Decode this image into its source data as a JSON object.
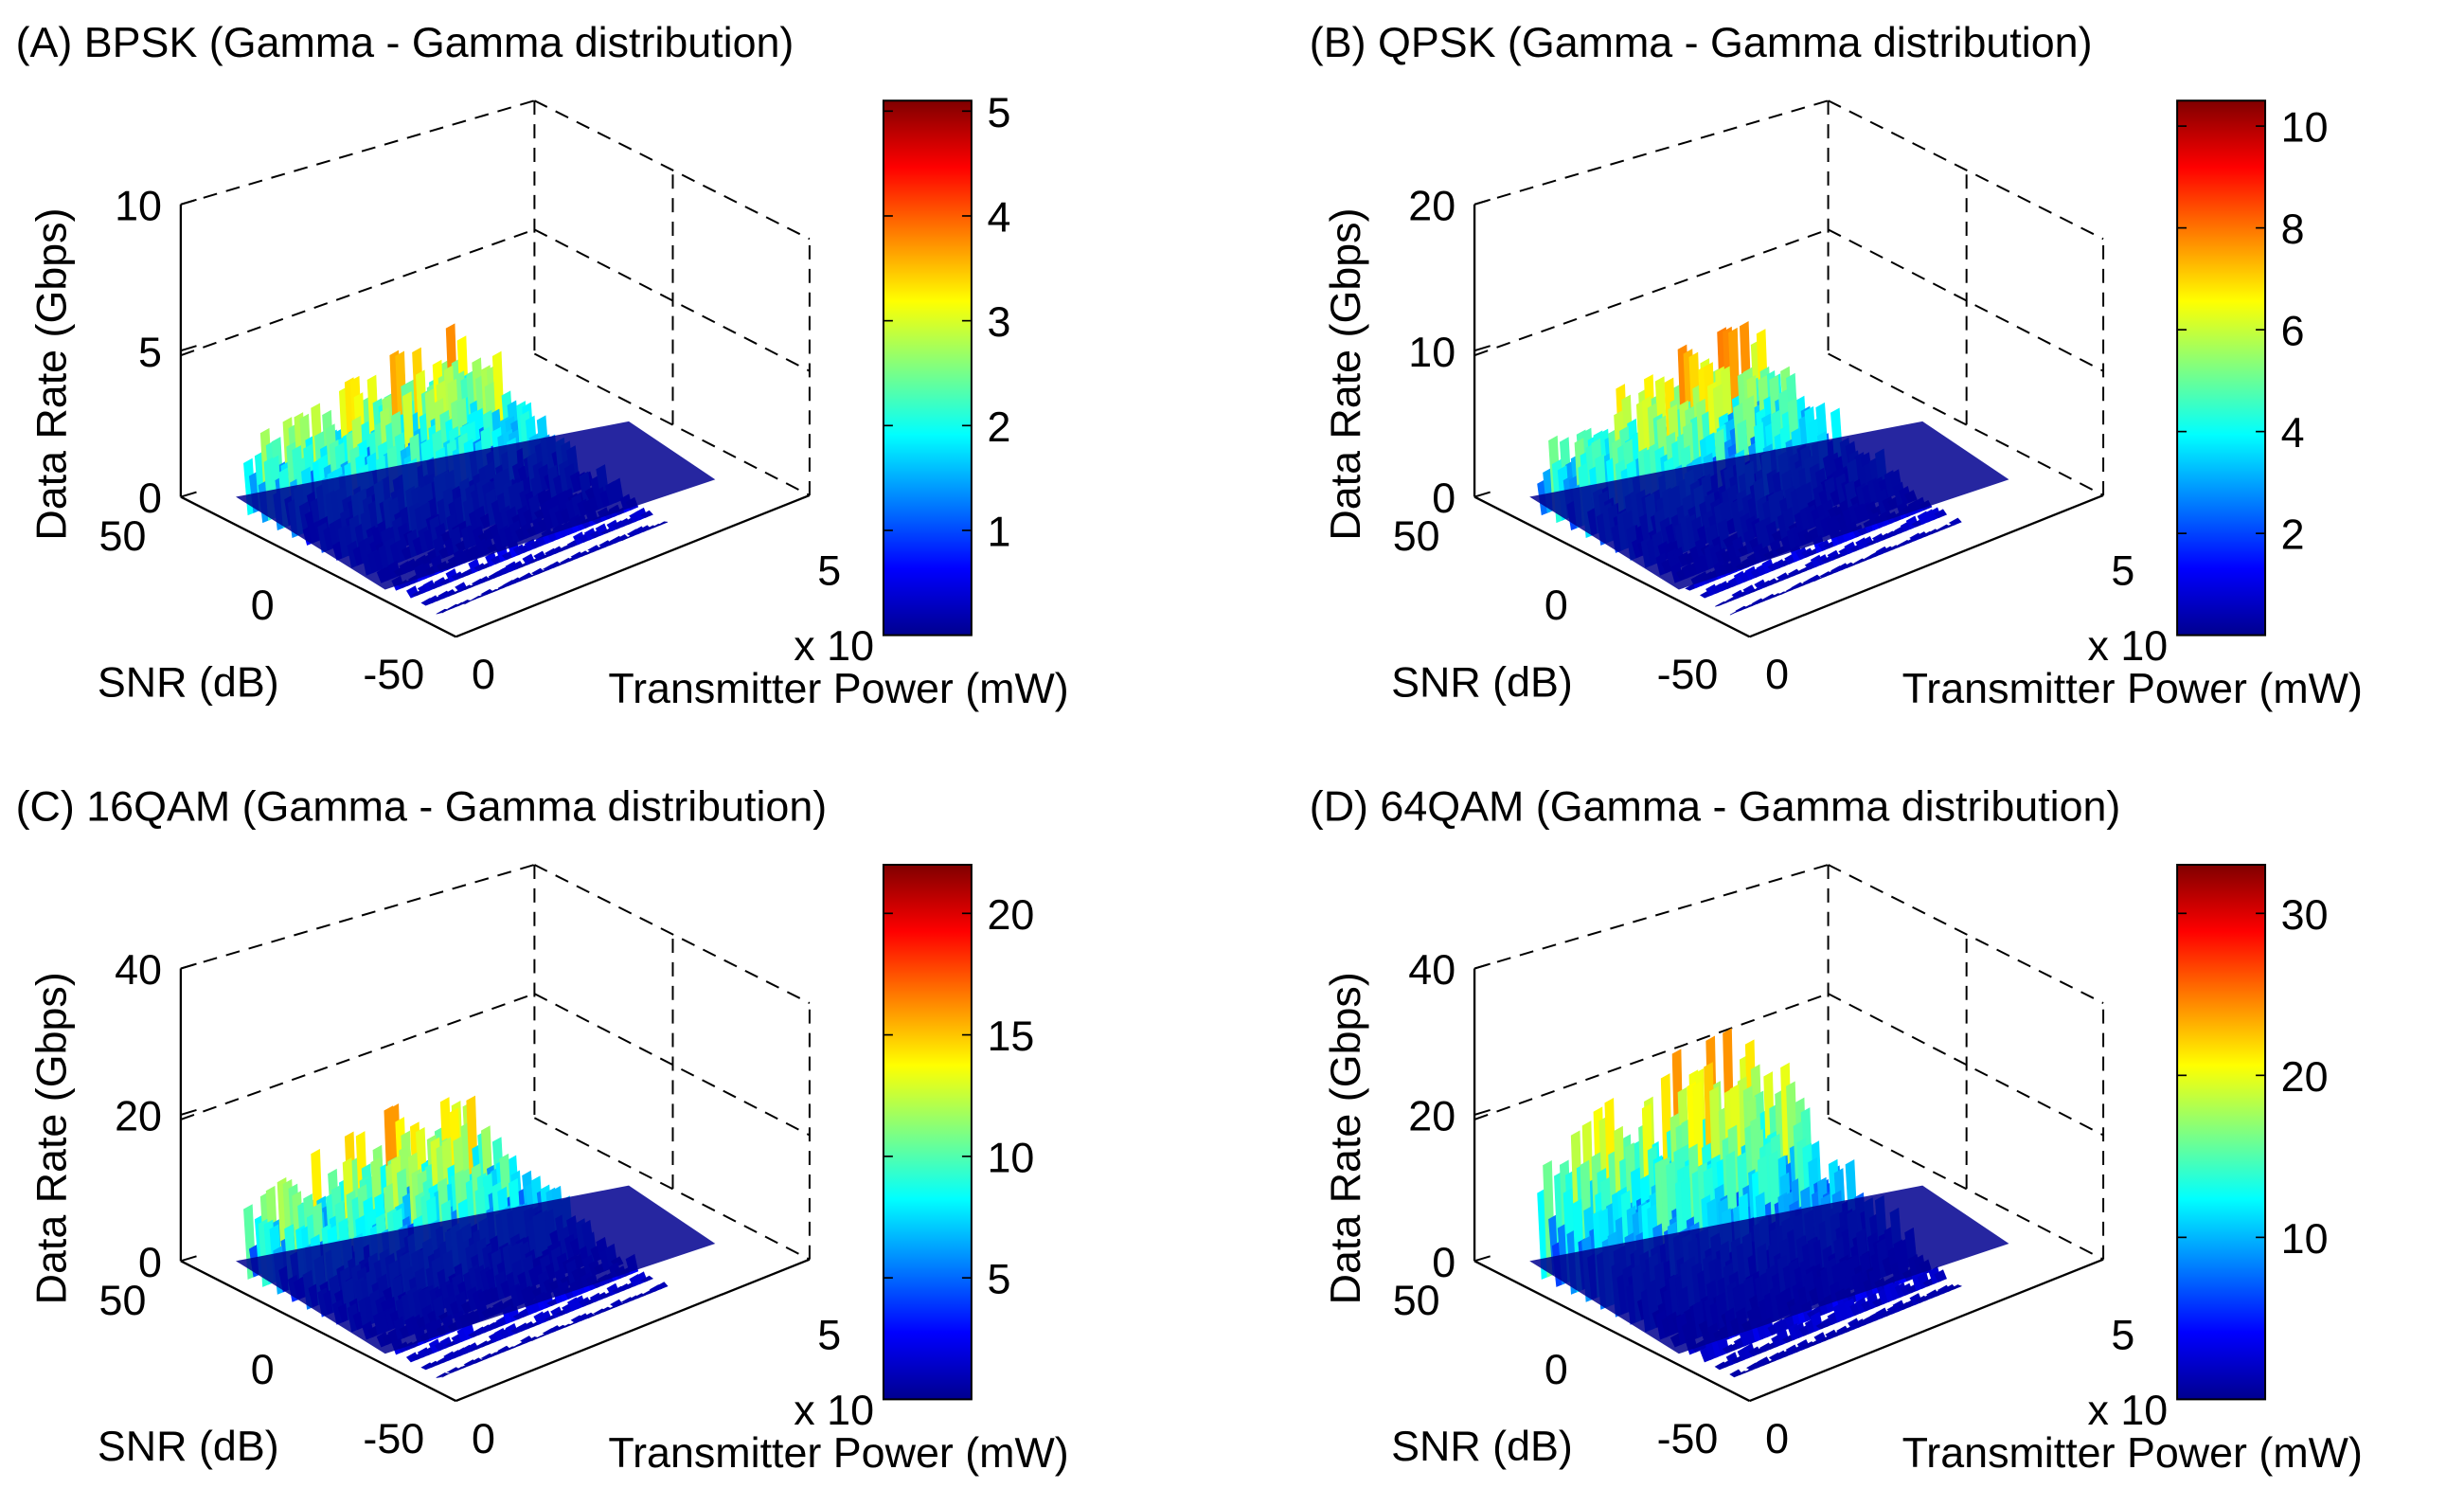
{
  "figure": {
    "common": {
      "zlabel": "Data Rate (Gbps)",
      "ylabel": "SNR (dB)",
      "xlabel": "Transmitter Power (mW)",
      "x_ticks": [
        "0",
        "5"
      ],
      "x_exponent": "x 10",
      "y_ticks": [
        "50",
        "0",
        "-50"
      ]
    }
  },
  "colormap": [
    "#00008f",
    "#0000ff",
    "#0080ff",
    "#00ffff",
    "#80ff80",
    "#ffff00",
    "#ff8000",
    "#ff0000",
    "#800000"
  ],
  "chart_data": [
    {
      "type": "surface",
      "title": "(A) BPSK (Gamma - Gamma distribution)",
      "xlabel": "Transmitter Power (mW)",
      "ylabel": "SNR (dB)",
      "zlabel": "Data Rate (Gbps)",
      "x_ticks": [
        "0",
        "5"
      ],
      "x_exponent": "x 10",
      "y_ticks": [
        "50",
        "0",
        "-50"
      ],
      "z_ticks": [
        "0",
        "5",
        "10"
      ],
      "zlim": [
        0,
        10
      ],
      "colorbar": {
        "ticks": [
          "1",
          "2",
          "3",
          "4",
          "5"
        ],
        "range": [
          0,
          5.1
        ]
      },
      "peak_data_rate": 5.1
    },
    {
      "type": "surface",
      "title": "(B) QPSK (Gamma - Gamma distribution)",
      "xlabel": "Transmitter Power (mW)",
      "ylabel": "SNR (dB)",
      "zlabel": "Data Rate (Gbps)",
      "x_ticks": [
        "0",
        "5"
      ],
      "x_exponent": "x 10",
      "y_ticks": [
        "50",
        "0",
        "-50"
      ],
      "z_ticks": [
        "0",
        "10",
        "20"
      ],
      "zlim": [
        0,
        20
      ],
      "colorbar": {
        "ticks": [
          "2",
          "4",
          "6",
          "8",
          "10"
        ],
        "range": [
          0,
          10.5
        ]
      },
      "peak_data_rate": 10.5
    },
    {
      "type": "surface",
      "title": "(C) 16QAM (Gamma - Gamma distribution)",
      "xlabel": "Transmitter Power (mW)",
      "ylabel": "SNR (dB)",
      "zlabel": "Data Rate (Gbps)",
      "x_ticks": [
        "0",
        "5"
      ],
      "x_exponent": "x 10",
      "y_ticks": [
        "50",
        "0",
        "-50"
      ],
      "z_ticks": [
        "0",
        "20",
        "40"
      ],
      "zlim": [
        0,
        40
      ],
      "colorbar": {
        "ticks": [
          "5",
          "10",
          "15",
          "20"
        ],
        "range": [
          0,
          22
        ]
      },
      "peak_data_rate": 22
    },
    {
      "type": "surface",
      "title": "(D) 64QAM (Gamma - Gamma distribution)",
      "xlabel": "Transmitter Power (mW)",
      "ylabel": "SNR (dB)",
      "zlabel": "Data Rate (Gbps)",
      "x_ticks": [
        "0",
        "5"
      ],
      "x_exponent": "x 10",
      "y_ticks": [
        "50",
        "0",
        "-50"
      ],
      "z_ticks": [
        "0",
        "20",
        "40"
      ],
      "zlim": [
        0,
        40
      ],
      "colorbar": {
        "ticks": [
          "10",
          "20",
          "30"
        ],
        "range": [
          0,
          33
        ]
      },
      "peak_data_rate": 33
    }
  ]
}
